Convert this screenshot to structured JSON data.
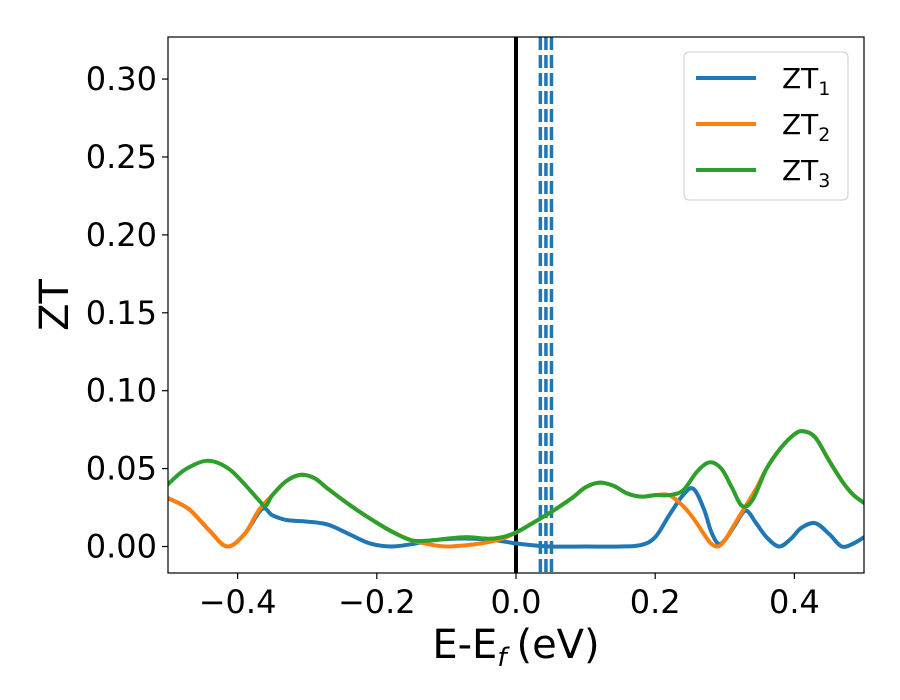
{
  "chart_data": {
    "type": "line",
    "xlabel": "E-E",
    "xlabel_sub": "f",
    "xlabel_unit": "(eV)",
    "ylabel": "ZT",
    "xlim": [
      -0.5,
      0.5
    ],
    "ylim": [
      -0.017,
      0.327
    ],
    "xticks": [
      -0.4,
      -0.2,
      0.0,
      0.2,
      0.4
    ],
    "xtick_labels": [
      "−0.4",
      "−0.2",
      "0.0",
      "0.2",
      "0.4"
    ],
    "yticks": [
      0.0,
      0.05,
      0.1,
      0.15,
      0.2,
      0.25,
      0.3
    ],
    "ytick_labels": [
      "0.00",
      "0.05",
      "0.10",
      "0.15",
      "0.20",
      "0.25",
      "0.30"
    ],
    "legend_position": "top-right",
    "grid": false,
    "fermi_line": {
      "x": 0.0,
      "color": "#000000"
    },
    "dashed_lines": {
      "x": [
        0.035,
        0.043,
        0.051
      ],
      "color": "#1f77b4"
    },
    "series": [
      {
        "name": "ZT",
        "name_sub": "1",
        "color": "#1f77b4",
        "points": [
          [
            -0.5,
            0.031
          ],
          [
            -0.47,
            0.024
          ],
          [
            -0.44,
            0.01
          ],
          [
            -0.415,
            0.0
          ],
          [
            -0.39,
            0.008
          ],
          [
            -0.365,
            0.024
          ],
          [
            -0.35,
            0.02
          ],
          [
            -0.33,
            0.017
          ],
          [
            -0.3,
            0.016
          ],
          [
            -0.27,
            0.014
          ],
          [
            -0.24,
            0.008
          ],
          [
            -0.21,
            0.002
          ],
          [
            -0.18,
            0.0
          ],
          [
            -0.15,
            0.0015
          ],
          [
            -0.12,
            0.004
          ],
          [
            -0.09,
            0.005
          ],
          [
            -0.06,
            0.005
          ],
          [
            -0.03,
            0.004
          ],
          [
            0.0,
            0.002
          ],
          [
            0.02,
            0.001
          ],
          [
            0.05,
            0.0
          ],
          [
            0.1,
            0.0
          ],
          [
            0.15,
            0.0
          ],
          [
            0.18,
            0.001
          ],
          [
            0.2,
            0.006
          ],
          [
            0.22,
            0.02
          ],
          [
            0.24,
            0.033
          ],
          [
            0.255,
            0.037
          ],
          [
            0.27,
            0.024
          ],
          [
            0.28,
            0.01
          ],
          [
            0.29,
            0.002
          ],
          [
            0.3,
            0.004
          ],
          [
            0.315,
            0.014
          ],
          [
            0.33,
            0.023
          ],
          [
            0.345,
            0.015
          ],
          [
            0.36,
            0.006
          ],
          [
            0.378,
            0.0
          ],
          [
            0.395,
            0.005
          ],
          [
            0.41,
            0.012
          ],
          [
            0.43,
            0.015
          ],
          [
            0.45,
            0.008
          ],
          [
            0.468,
            0.0
          ],
          [
            0.485,
            0.002
          ],
          [
            0.5,
            0.006
          ]
        ]
      },
      {
        "name": "ZT",
        "name_sub": "2",
        "color": "#ff7f0e",
        "points": [
          [
            -0.5,
            0.031
          ],
          [
            -0.47,
            0.024
          ],
          [
            -0.44,
            0.01
          ],
          [
            -0.415,
            0.0
          ],
          [
            -0.39,
            0.008
          ],
          [
            -0.37,
            0.023
          ],
          [
            -0.35,
            0.033
          ],
          [
            -0.33,
            0.042
          ],
          [
            -0.31,
            0.046
          ],
          [
            -0.29,
            0.044
          ],
          [
            -0.27,
            0.037
          ],
          [
            -0.24,
            0.027
          ],
          [
            -0.21,
            0.018
          ],
          [
            -0.18,
            0.01
          ],
          [
            -0.15,
            0.004
          ],
          [
            -0.12,
            0.001
          ],
          [
            -0.1,
            0.0
          ],
          [
            -0.08,
            0.0005
          ],
          [
            -0.05,
            0.002
          ],
          [
            -0.02,
            0.005
          ],
          [
            0.0,
            0.009
          ],
          [
            0.02,
            0.014
          ],
          [
            0.05,
            0.022
          ],
          [
            0.08,
            0.031
          ],
          [
            0.1,
            0.038
          ],
          [
            0.12,
            0.041
          ],
          [
            0.14,
            0.039
          ],
          [
            0.16,
            0.034
          ],
          [
            0.18,
            0.032
          ],
          [
            0.2,
            0.033
          ],
          [
            0.22,
            0.033
          ],
          [
            0.24,
            0.026
          ],
          [
            0.255,
            0.018
          ],
          [
            0.27,
            0.008
          ],
          [
            0.28,
            0.002
          ],
          [
            0.29,
            0.0
          ],
          [
            0.3,
            0.004
          ],
          [
            0.315,
            0.015
          ],
          [
            0.33,
            0.026
          ],
          [
            0.345,
            0.037
          ],
          [
            0.36,
            0.05
          ],
          [
            0.38,
            0.063
          ],
          [
            0.4,
            0.072
          ],
          [
            0.413,
            0.074
          ],
          [
            0.43,
            0.07
          ],
          [
            0.45,
            0.055
          ],
          [
            0.47,
            0.041
          ],
          [
            0.485,
            0.033
          ],
          [
            0.5,
            0.028
          ]
        ]
      },
      {
        "name": "ZT",
        "name_sub": "3",
        "color": "#2ca02c",
        "points": [
          [
            -0.5,
            0.04
          ],
          [
            -0.48,
            0.048
          ],
          [
            -0.46,
            0.053
          ],
          [
            -0.445,
            0.055
          ],
          [
            -0.43,
            0.054
          ],
          [
            -0.41,
            0.049
          ],
          [
            -0.39,
            0.04
          ],
          [
            -0.37,
            0.03
          ],
          [
            -0.36,
            0.026
          ],
          [
            -0.35,
            0.033
          ],
          [
            -0.33,
            0.042
          ],
          [
            -0.31,
            0.046
          ],
          [
            -0.29,
            0.044
          ],
          [
            -0.27,
            0.037
          ],
          [
            -0.24,
            0.027
          ],
          [
            -0.21,
            0.018
          ],
          [
            -0.18,
            0.01
          ],
          [
            -0.15,
            0.004
          ],
          [
            -0.12,
            0.004
          ],
          [
            -0.1,
            0.005
          ],
          [
            -0.07,
            0.006
          ],
          [
            -0.04,
            0.005
          ],
          [
            -0.02,
            0.006
          ],
          [
            0.0,
            0.009
          ],
          [
            0.02,
            0.014
          ],
          [
            0.05,
            0.022
          ],
          [
            0.08,
            0.031
          ],
          [
            0.1,
            0.038
          ],
          [
            0.12,
            0.041
          ],
          [
            0.14,
            0.039
          ],
          [
            0.16,
            0.034
          ],
          [
            0.18,
            0.032
          ],
          [
            0.2,
            0.033
          ],
          [
            0.22,
            0.033
          ],
          [
            0.24,
            0.036
          ],
          [
            0.26,
            0.048
          ],
          [
            0.278,
            0.054
          ],
          [
            0.295,
            0.05
          ],
          [
            0.31,
            0.038
          ],
          [
            0.325,
            0.026
          ],
          [
            0.34,
            0.03
          ],
          [
            0.36,
            0.05
          ],
          [
            0.38,
            0.063
          ],
          [
            0.4,
            0.072
          ],
          [
            0.413,
            0.074
          ],
          [
            0.43,
            0.07
          ],
          [
            0.45,
            0.055
          ],
          [
            0.47,
            0.041
          ],
          [
            0.485,
            0.033
          ],
          [
            0.5,
            0.028
          ]
        ]
      }
    ]
  }
}
